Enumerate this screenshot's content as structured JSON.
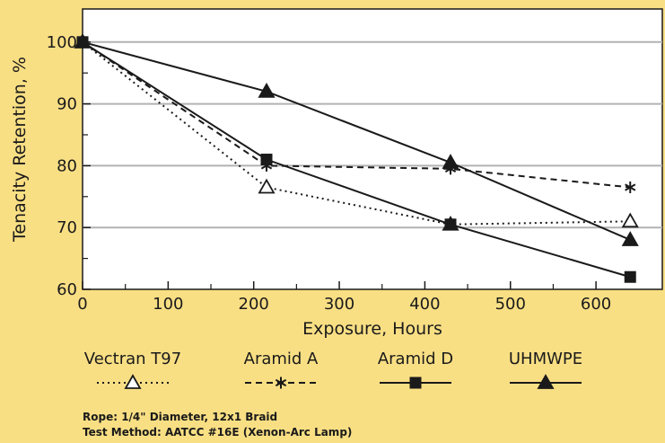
{
  "chart_data": {
    "type": "line",
    "xlabel": "Exposure, Hours",
    "ylabel": "Tenacity Retention, %",
    "xlim": [
      0,
      650
    ],
    "ylim": [
      60,
      105
    ],
    "x_ticks": [
      0,
      100,
      200,
      300,
      400,
      500,
      600
    ],
    "y_ticks": [
      60,
      70,
      80,
      90,
      100
    ],
    "grid": "horizontal",
    "legend_placement": "bottom",
    "series": [
      {
        "name": "Vectran T97",
        "line_style": "dotted",
        "marker": "open-triangle",
        "color": "#1a1a1a",
        "x": [
          0,
          215,
          430,
          640
        ],
        "values": [
          100,
          76.5,
          70.5,
          71
        ]
      },
      {
        "name": "Aramid A",
        "line_style": "dashed",
        "marker": "asterisk",
        "color": "#1a1a1a",
        "x": [
          0,
          215,
          430,
          640
        ],
        "values": [
          100,
          80,
          79.5,
          76.5
        ]
      },
      {
        "name": "Aramid D",
        "line_style": "solid",
        "marker": "filled-square",
        "color": "#1a1a1a",
        "x": [
          0,
          215,
          430,
          640
        ],
        "values": [
          100,
          81,
          70.5,
          62
        ]
      },
      {
        "name": "UHMWPE",
        "line_style": "solid",
        "marker": "filled-triangle",
        "color": "#1a1a1a",
        "x": [
          0,
          215,
          430,
          640
        ],
        "values": [
          100,
          92,
          80.5,
          68
        ]
      }
    ]
  },
  "notes": {
    "line1": "Rope: 1/4\" Diameter, 12x1 Braid",
    "line2": "Test Method: AATCC #16E (Xenon-Arc Lamp)"
  },
  "colors": {
    "background": "#f9df84",
    "plot_area": "#ffffff",
    "grid": "#b2b2b2",
    "ink": "#1a1a1a"
  }
}
